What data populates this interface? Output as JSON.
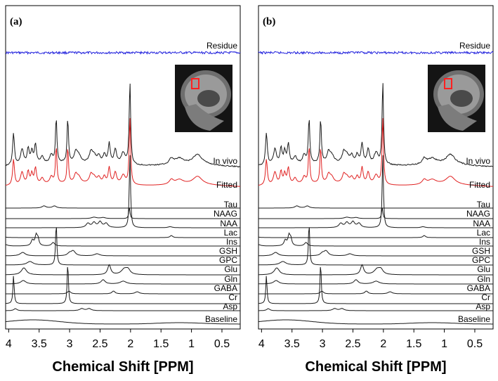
{
  "chart_data": [
    {
      "type": "line",
      "panel": "(a)",
      "xlabel": "Chemical Shift [PPM]",
      "xlim": [
        4.05,
        0.2
      ],
      "ticks": [
        4,
        3.5,
        3,
        2.5,
        2,
        1.5,
        1,
        0.5
      ],
      "tick_labels": [
        "4",
        "3.5",
        "3",
        "2.5",
        "2",
        "1.5",
        "1",
        "0.5"
      ],
      "traces": [
        "Residue",
        "In vivo",
        "Fitted",
        "Tau",
        "NAAG",
        "NAA",
        "Lac",
        "Ins",
        "GSH",
        "GPC",
        "Glu",
        "Gln",
        "GABA",
        "Cr",
        "Asp",
        "Baseline"
      ]
    },
    {
      "type": "line",
      "panel": "(b)",
      "xlabel": "Chemical Shift [PPM]",
      "xlim": [
        4.05,
        0.2
      ],
      "ticks": [
        4,
        3.5,
        3,
        2.5,
        2,
        1.5,
        1,
        0.5
      ],
      "tick_labels": [
        "4",
        "3.5",
        "3",
        "2.5",
        "2",
        "1.5",
        "1",
        "0.5"
      ],
      "traces": [
        "Residue",
        "In vivo",
        "Fitted",
        "Tau",
        "NAAG",
        "NAA",
        "Lac",
        "Ins",
        "GSH",
        "GPC",
        "Glu",
        "Gln",
        "GABA",
        "Cr",
        "Asp",
        "Baseline"
      ]
    }
  ],
  "colors": {
    "residue": "#2222dd",
    "fitted": "#e02020",
    "trace": "#1a1a1a",
    "voxel": "#ff2020"
  }
}
